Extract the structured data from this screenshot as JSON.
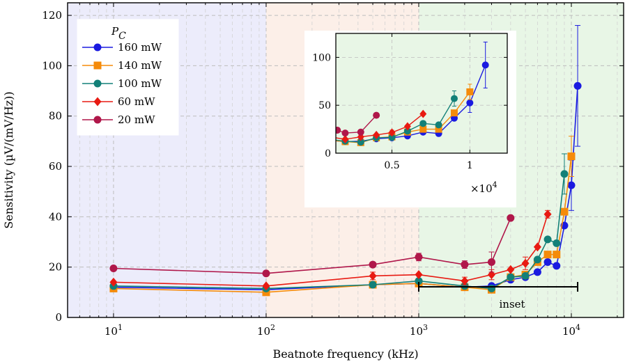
{
  "chart_data": {
    "type": "line",
    "title": "",
    "xlabel": "Beatnote frequency (kHz)",
    "ylabel": "Sensitivity (µV/(mV/Hz))",
    "xscale": "log",
    "xlim": [
      5,
      22000
    ],
    "ylim": [
      0,
      125
    ],
    "x_ticks": [
      10,
      100,
      1000,
      10000
    ],
    "x_tick_labels": [
      {
        "base": "10",
        "exp": "1"
      },
      {
        "base": "10",
        "exp": "2"
      },
      {
        "base": "10",
        "exp": "3"
      },
      {
        "base": "10",
        "exp": "4"
      }
    ],
    "y_ticks": [
      0,
      20,
      40,
      60,
      80,
      100,
      120
    ],
    "grid": true,
    "background_bands": [
      {
        "from": 5,
        "to": 100,
        "color": "#ececfb"
      },
      {
        "from": 100,
        "to": 1000,
        "color": "#fcefe8"
      },
      {
        "from": 1000,
        "to": 22000,
        "color": "#e8f6e6"
      }
    ],
    "legend": {
      "title": "P",
      "title_sub": "C",
      "placement": "top-left"
    },
    "series": [
      {
        "name": "160 mW",
        "color": "#1a1ae0",
        "marker": "circle",
        "x": [
          10,
          100,
          500,
          1000,
          2000,
          3000,
          4000,
          5000,
          6000,
          7000,
          8000,
          9000,
          10000,
          11000
        ],
        "y": [
          12,
          11,
          13,
          13.5,
          12,
          12.5,
          15,
          16,
          18,
          22,
          20.5,
          36.5,
          52.5,
          92
        ],
        "err": [
          0,
          0,
          0,
          0,
          0,
          0,
          0,
          0,
          0,
          0,
          0,
          0,
          10,
          24
        ]
      },
      {
        "name": "140 mW",
        "color": "#f58b0a",
        "marker": "square",
        "x": [
          10,
          100,
          500,
          1000,
          2000,
          3000,
          4000,
          5000,
          6000,
          7000,
          8000,
          9000,
          10000
        ],
        "y": [
          11.5,
          10,
          13,
          13.5,
          12,
          11,
          16,
          17,
          22,
          25,
          25,
          42,
          64
        ],
        "err": [
          0,
          0,
          0,
          0,
          0,
          0,
          0,
          0,
          0,
          0,
          0,
          0,
          8
        ]
      },
      {
        "name": "100 mW",
        "color": "#138078",
        "marker": "circle",
        "x": [
          10,
          100,
          500,
          1000,
          2000,
          3000,
          4000,
          5000,
          6000,
          7000,
          8000,
          9000
        ],
        "y": [
          12.5,
          11.5,
          13,
          14.5,
          12.5,
          11.5,
          16,
          16.5,
          23,
          31,
          29.5,
          57
        ],
        "err": [
          0,
          0,
          0,
          0,
          0,
          0,
          0,
          0,
          0,
          0,
          0,
          8
        ]
      },
      {
        "name": "60 mW",
        "color": "#e81a12",
        "marker": "diamond",
        "x": [
          10,
          100,
          500,
          1000,
          2000,
          3000,
          4000,
          5000,
          6000,
          7000
        ],
        "y": [
          14,
          12.5,
          16.5,
          17,
          14.5,
          17,
          19,
          21.5,
          28,
          41
        ],
        "err": [
          0,
          0,
          1.5,
          0,
          1.5,
          2,
          0,
          2.5,
          0,
          1.5
        ]
      },
      {
        "name": "20 mW",
        "color": "#b0174a",
        "marker": "circle",
        "x": [
          10,
          100,
          500,
          1000,
          2000,
          3000,
          4000
        ],
        "y": [
          19.5,
          17.5,
          21,
          24,
          21,
          22,
          39.5
        ],
        "err": [
          0,
          0,
          0,
          1.5,
          1.5,
          4,
          0
        ]
      }
    ],
    "inset_bracket": {
      "label": "inset",
      "from": 1000,
      "to": 11000
    },
    "inset": {
      "xlim": [
        1400,
        12400
      ],
      "ylim": [
        0,
        125
      ],
      "x_ticks": [
        5000,
        10000
      ],
      "x_tick_labels": [
        "0.5",
        "1"
      ],
      "x_multiplier": {
        "base": "×10",
        "exp": "4"
      },
      "y_ticks": [
        0,
        50,
        100
      ],
      "background": "#e8f6e6",
      "series_y_overrides": {
        "20 mW": {
          "x": [
            1500,
            2000,
            3000,
            4000
          ],
          "y": [
            24,
            21,
            22,
            39.5
          ]
        }
      }
    }
  }
}
